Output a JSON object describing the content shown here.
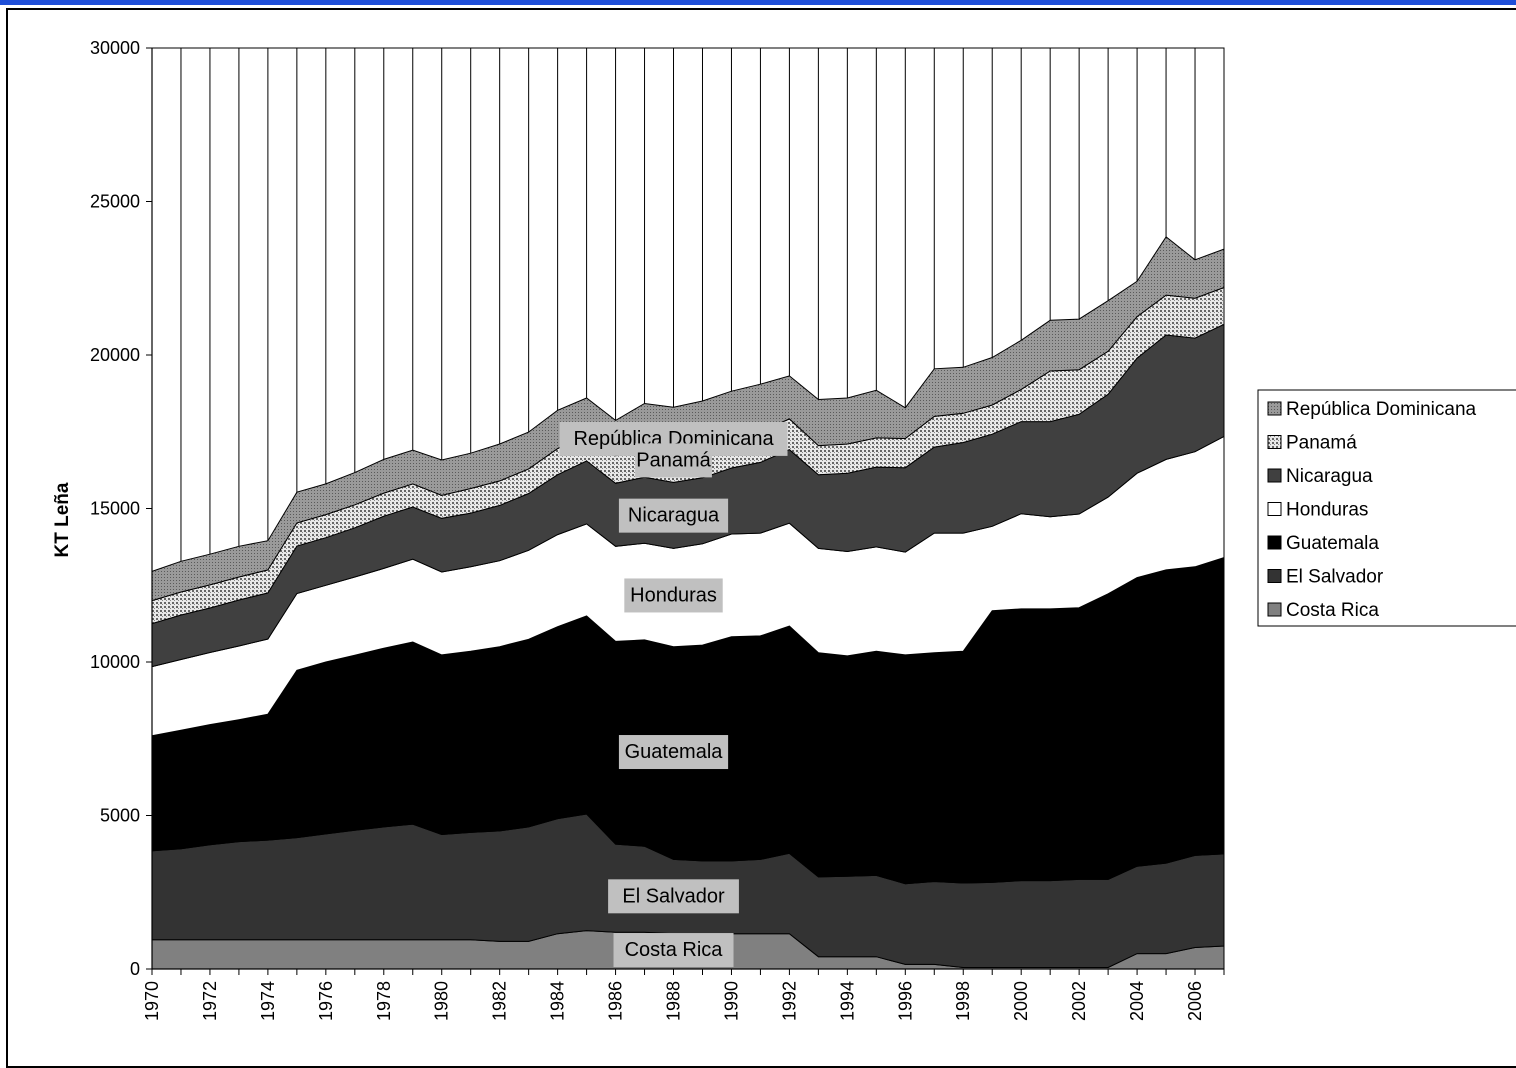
{
  "chart_data": {
    "type": "area",
    "stacked": true,
    "title": "",
    "xlabel": "",
    "ylabel": "KT Leña",
    "ylim": [
      0,
      30000
    ],
    "y_ticks": [
      0,
      5000,
      10000,
      15000,
      20000,
      25000,
      30000
    ],
    "x_tick_labels": [
      "1970",
      "1972",
      "1974",
      "1976",
      "1978",
      "1980",
      "1982",
      "1984",
      "1986",
      "1988",
      "1990",
      "1992",
      "1994",
      "1996",
      "1998",
      "2000",
      "2002",
      "2004",
      "2006"
    ],
    "grid": "vertical lines at each year",
    "legend_position": "right",
    "x": [
      1970,
      1971,
      1972,
      1973,
      1974,
      1975,
      1976,
      1977,
      1978,
      1979,
      1980,
      1981,
      1982,
      1983,
      1984,
      1985,
      1986,
      1987,
      1988,
      1989,
      1990,
      1991,
      1992,
      1993,
      1994,
      1995,
      1996,
      1997,
      1998,
      1999,
      2000,
      2001,
      2002,
      2003,
      2004,
      2005,
      2006,
      2007
    ],
    "series": [
      {
        "name": "Costa Rica",
        "color": "#808080",
        "values": [
          950,
          950,
          950,
          950,
          950,
          950,
          950,
          950,
          950,
          950,
          950,
          950,
          900,
          900,
          1150,
          1250,
          1200,
          1200,
          1150,
          1150,
          1150,
          1150,
          1150,
          400,
          400,
          400,
          150,
          150,
          50,
          50,
          50,
          50,
          50,
          50,
          500,
          500,
          700,
          750
        ]
      },
      {
        "name": "El Salvador",
        "color": "#333333",
        "values": [
          2900,
          2970,
          3100,
          3200,
          3250,
          3330,
          3450,
          3570,
          3680,
          3770,
          3430,
          3500,
          3600,
          3730,
          3750,
          3800,
          2870,
          2800,
          2420,
          2370,
          2370,
          2420,
          2620,
          2600,
          2620,
          2650,
          2630,
          2700,
          2750,
          2770,
          2830,
          2830,
          2870,
          2870,
          2850,
          2950,
          3000,
          3000
        ]
      },
      {
        "name": "Guatemala",
        "color": "#000000",
        "values": [
          3750,
          3860,
          3910,
          3970,
          4100,
          5450,
          5600,
          5700,
          5820,
          5930,
          5850,
          5900,
          6000,
          6110,
          6250,
          6450,
          6600,
          6720,
          6930,
          7030,
          7300,
          7280,
          7400,
          7300,
          7180,
          7300,
          7450,
          7450,
          7550,
          8850,
          8850,
          8850,
          8850,
          9300,
          9400,
          9550,
          9400,
          9650
        ]
      },
      {
        "name": "Honduras",
        "color": "#ffffff",
        "values": [
          2250,
          2300,
          2350,
          2400,
          2450,
          2500,
          2500,
          2550,
          2600,
          2700,
          2700,
          2750,
          2800,
          2900,
          3000,
          3000,
          3100,
          3150,
          3200,
          3300,
          3350,
          3350,
          3350,
          3400,
          3400,
          3400,
          3350,
          3900,
          3850,
          2750,
          3100,
          3000,
          3050,
          3150,
          3400,
          3600,
          3750,
          3950
        ]
      },
      {
        "name": "Nicaragua",
        "color": "#404040",
        "values": [
          1400,
          1450,
          1450,
          1500,
          1500,
          1550,
          1550,
          1600,
          1700,
          1700,
          1750,
          1750,
          1800,
          1850,
          1950,
          2050,
          2050,
          2150,
          2150,
          2150,
          2150,
          2300,
          2400,
          2400,
          2550,
          2600,
          2750,
          2800,
          2950,
          3000,
          3000,
          3100,
          3250,
          3350,
          3750,
          4050,
          3700,
          3650
        ]
      },
      {
        "name": "Panamá",
        "color": "#bdbdbd",
        "pattern": "dotted",
        "values": [
          750,
          750,
          750,
          750,
          750,
          750,
          750,
          750,
          750,
          750,
          750,
          800,
          800,
          800,
          850,
          900,
          900,
          900,
          950,
          950,
          950,
          1000,
          1000,
          950,
          950,
          950,
          950,
          1000,
          950,
          950,
          1050,
          1650,
          1450,
          1400,
          1350,
          1300,
          1300,
          1200
        ]
      },
      {
        "name": "República Dominicana",
        "color": "#8c8c8c",
        "pattern": "fine",
        "values": [
          950,
          1000,
          1000,
          1000,
          950,
          1000,
          1000,
          1050,
          1100,
          1100,
          1150,
          1150,
          1200,
          1200,
          1250,
          1150,
          1150,
          1500,
          1500,
          1550,
          1550,
          1550,
          1400,
          1500,
          1500,
          1550,
          1000,
          1550,
          1500,
          1550,
          1600,
          1650,
          1650,
          1650,
          1150,
          1900,
          1250,
          1250
        ]
      }
    ],
    "area_labels": [
      "República Dominicana",
      "Panamá",
      "Nicaragua",
      "Honduras",
      "Guatemala",
      "El Salvador",
      "Costa Rica"
    ]
  }
}
